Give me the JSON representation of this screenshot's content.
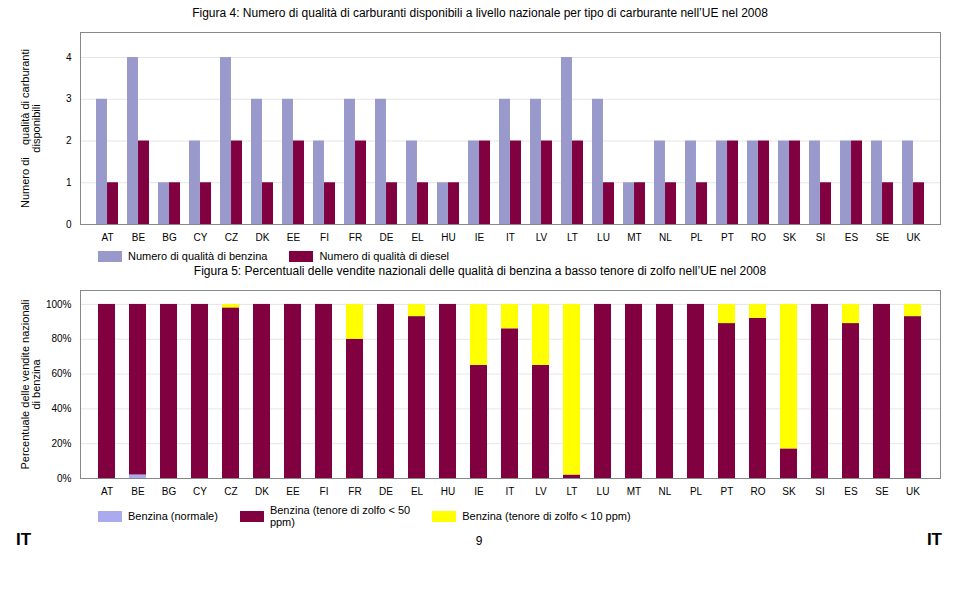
{
  "chart_data": [
    {
      "type": "bar",
      "title": "Figura 4: Numero di qualità di carburanti disponibili a livello nazionale per tipo di carburante nell’UE nel 2008",
      "ylabel": "Numero di    qualità di carburanti\ndisponibili",
      "categories": [
        "AT",
        "BE",
        "BG",
        "CY",
        "CZ",
        "DK",
        "EE",
        "FI",
        "FR",
        "DE",
        "EL",
        "HU",
        "IE",
        "IT",
        "LV",
        "LT",
        "LU",
        "MT",
        "NL",
        "PL",
        "PT",
        "RO",
        "SK",
        "SI",
        "ES",
        "SE",
        "UK"
      ],
      "series": [
        {
          "name": "Numero di qualità di benzina",
          "color": "#9999cc",
          "values": [
            3,
            4,
            1,
            2,
            4,
            3,
            3,
            2,
            3,
            3,
            2,
            1,
            2,
            3,
            3,
            4,
            3,
            1,
            2,
            2,
            2,
            2,
            2,
            2,
            2,
            2,
            2
          ]
        },
        {
          "name": "Numero di qualità di diesel",
          "color": "#800040",
          "values": [
            1,
            2,
            1,
            1,
            2,
            1,
            2,
            1,
            2,
            1,
            1,
            1,
            2,
            2,
            2,
            2,
            1,
            1,
            1,
            1,
            2,
            2,
            2,
            1,
            2,
            1,
            1
          ]
        }
      ],
      "ylim": [
        0,
        4.6
      ],
      "yticks": [
        0,
        1,
        2,
        3,
        4
      ],
      "grid": true,
      "legend": "bottom"
    },
    {
      "type": "bar",
      "title": "Figura 5: Percentuali delle vendite nazionali delle qualità di benzina a basso tenore di zolfo nell’UE nel 2008",
      "ylabel": "Percentuale delle vendite nazionali\ndi benzina",
      "categories": [
        "AT",
        "BE",
        "BG",
        "CY",
        "CZ",
        "DK",
        "EE",
        "FI",
        "FR",
        "DE",
        "EL",
        "HU",
        "IE",
        "IT",
        "LV",
        "LT",
        "LU",
        "MT",
        "NL",
        "PL",
        "PT",
        "RO",
        "SK",
        "SI",
        "ES",
        "SE",
        "UK"
      ],
      "series": [
        {
          "name": "Benzina (normale)",
          "color": "#aaaaee",
          "values": [
            0,
            0.02,
            0,
            0,
            0,
            0,
            0,
            0,
            0,
            0,
            0,
            0,
            0,
            0,
            0,
            0,
            0,
            0,
            0,
            0,
            0,
            0,
            0,
            0,
            0,
            0,
            0
          ]
        },
        {
          "name": "Benzina (tenore di zolfo < 50\nppm)",
          "color": "#800040",
          "values": [
            1.0,
            0.98,
            1.0,
            1.0,
            0.98,
            1.0,
            1.0,
            1.0,
            0.8,
            1.0,
            0.93,
            1.0,
            0.65,
            0.86,
            0.65,
            0.02,
            1.0,
            1.0,
            1.0,
            1.0,
            0.89,
            0.92,
            0.17,
            1.0,
            0.89,
            1.0,
            0.93
          ]
        },
        {
          "name": "Benzina (tenore di zolfo < 10 ppm)",
          "color": "#ffff00",
          "values": [
            0,
            0,
            0,
            0,
            0.02,
            0,
            0,
            0,
            0.2,
            0,
            0.07,
            0,
            0.35,
            0.14,
            0.35,
            0.98,
            0,
            0,
            0,
            0,
            0.11,
            0.08,
            0.83,
            0,
            0.11,
            0,
            0.07
          ]
        }
      ],
      "stacked": true,
      "ylim": [
        0,
        1.08
      ],
      "yticks": [
        {
          "value": 0,
          "label": "0%"
        },
        {
          "value": 0.2,
          "label": "20%"
        },
        {
          "value": 0.4,
          "label": "40%"
        },
        {
          "value": 0.6,
          "label": "60%"
        },
        {
          "value": 0.8,
          "label": "80%"
        },
        {
          "value": 1.0,
          "label": "100%"
        }
      ],
      "grid": true,
      "legend": "bottom",
      "annotations": [
        "IT",
        "9",
        "IT"
      ]
    }
  ]
}
